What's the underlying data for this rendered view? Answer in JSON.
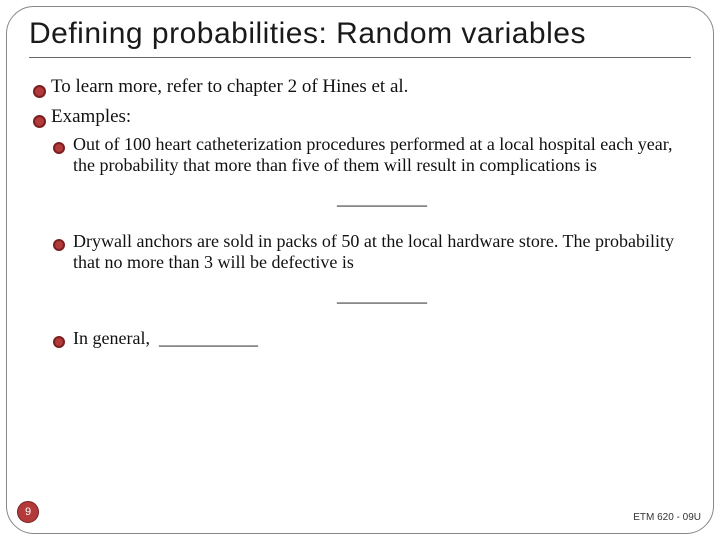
{
  "title": {
    "text": "Defining probabilities: Random variables",
    "fontsize": 30
  },
  "body_fontsize": 19,
  "sub_fontsize": 18,
  "bullet_color": "#b23a3a",
  "bullets": [
    {
      "text": "To learn more, refer to chapter 2 of Hines et al."
    },
    {
      "text": "Examples:",
      "sub": [
        {
          "text": "Out of 100 heart catheterization procedures performed at a local hospital each year, the probability that more than five of them will result in complications is",
          "blank": "__________"
        },
        {
          "text": "Drywall anchors are sold in packs of 50 at the local hardware store. The probability that no more than 3 will be defective is",
          "blank": "__________"
        },
        {
          "inline_prefix": "In general,  ",
          "inline_blank": "___________"
        }
      ]
    }
  ],
  "page_number": "9",
  "footer": "ETM 620 - 09U"
}
